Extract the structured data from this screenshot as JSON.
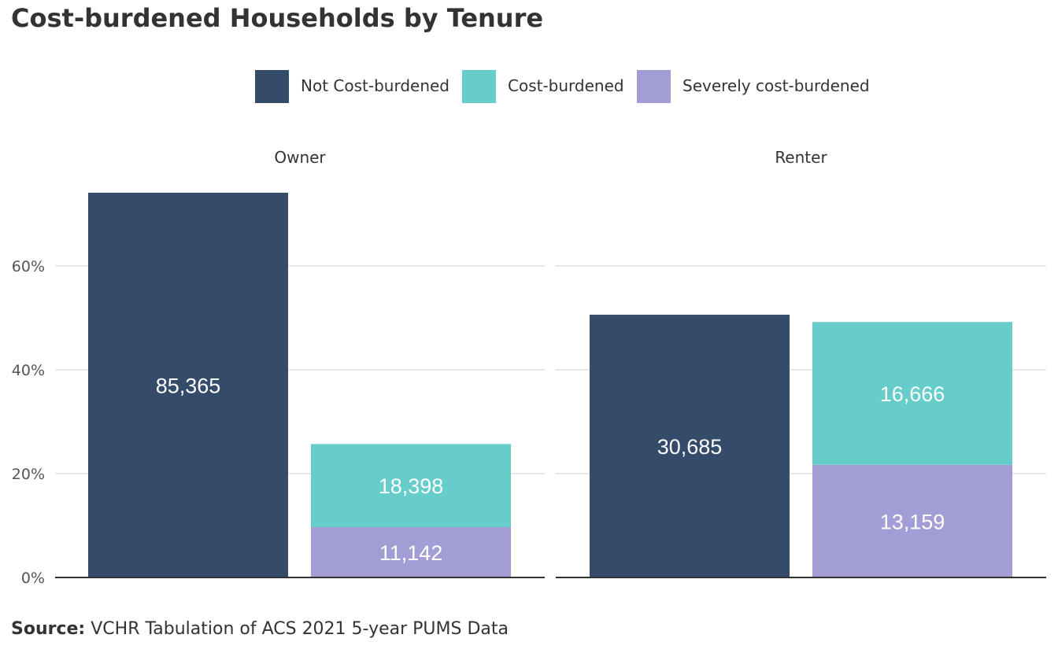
{
  "title": "Cost-burdened Households by Tenure",
  "source": {
    "label": "Source:",
    "text": "VCHR Tabulation of ACS 2021 5-year PUMS Data"
  },
  "colors": {
    "not_cost_burdened": "#344b69",
    "cost_burdened": "#66cdcb",
    "severely_cost_burdened": "#a39dd6",
    "grid": "#d0d0d0",
    "axis": "#333333"
  },
  "chart_data": {
    "type": "bar",
    "stacked": true,
    "facets": [
      "Owner",
      "Renter"
    ],
    "y_ticks": [
      "0%",
      "20%",
      "40%",
      "60%"
    ],
    "y_tick_values": [
      0,
      20,
      40,
      60
    ],
    "ylim": [
      0,
      74
    ],
    "legend": [
      "Not Cost-burdened",
      "Cost-burdened",
      "Severely cost-burdened"
    ],
    "legend_position": "top",
    "grid": true,
    "panels": [
      {
        "name": "Owner",
        "bars": [
          {
            "segments": [
              {
                "series": "Not Cost-burdened",
                "percent": 74.1,
                "label": "85,365"
              }
            ]
          },
          {
            "segments": [
              {
                "series": "Severely cost-burdened",
                "percent": 9.7,
                "label": "11,142"
              },
              {
                "series": "Cost-burdened",
                "percent": 16.0,
                "label": "18,398"
              }
            ]
          }
        ]
      },
      {
        "name": "Renter",
        "bars": [
          {
            "segments": [
              {
                "series": "Not Cost-burdened",
                "percent": 50.6,
                "label": "30,685"
              }
            ]
          },
          {
            "segments": [
              {
                "series": "Severely cost-burdened",
                "percent": 21.7,
                "label": "13,159"
              },
              {
                "series": "Cost-burdened",
                "percent": 27.5,
                "label": "16,666"
              }
            ]
          }
        ]
      }
    ]
  }
}
